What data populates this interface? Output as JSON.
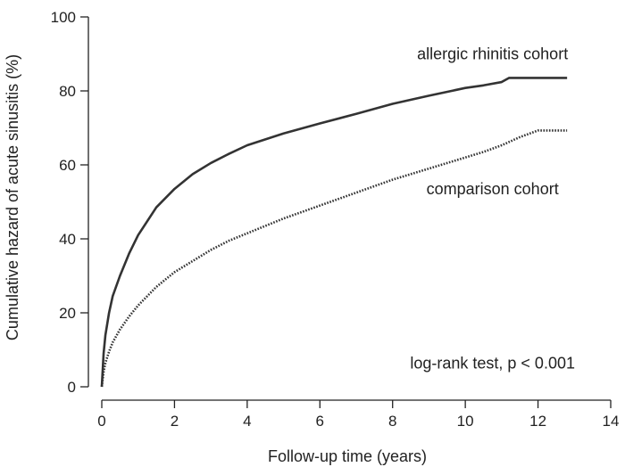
{
  "chart_data": {
    "type": "line",
    "title": "",
    "xlabel": "Follow-up time (years)",
    "ylabel": "Cumulative hazard of acute sinusitis (%)",
    "xlim": [
      0,
      14
    ],
    "ylim": [
      0,
      100
    ],
    "xticks": [
      0,
      2,
      4,
      6,
      8,
      10,
      12,
      14
    ],
    "yticks": [
      0,
      20,
      40,
      60,
      80,
      100
    ],
    "grid": false,
    "legend": "none",
    "series": [
      {
        "name": "allergic rhinitis cohort",
        "style": "solid",
        "color": "#333333",
        "x": [
          0,
          0.05,
          0.1,
          0.2,
          0.3,
          0.5,
          0.75,
          1,
          1.5,
          2,
          2.5,
          3,
          3.5,
          4,
          5,
          6,
          7,
          8,
          9,
          10,
          10.5,
          11,
          11.2,
          11.5,
          12,
          12.8
        ],
        "y": [
          0,
          9,
          14,
          20,
          24.5,
          30,
          36,
          41,
          48.5,
          53.5,
          57.5,
          60.5,
          63,
          65.3,
          68.5,
          71.2,
          73.8,
          76.5,
          78.7,
          80.8,
          81.5,
          82.4,
          83.5,
          83.5,
          83.5,
          83.5
        ]
      },
      {
        "name": "comparison cohort",
        "style": "dotted",
        "color": "#333333",
        "x": [
          0,
          0.05,
          0.1,
          0.2,
          0.3,
          0.5,
          0.75,
          1,
          1.5,
          2,
          2.5,
          3,
          3.5,
          4,
          5,
          6,
          7,
          8,
          9,
          10,
          10.5,
          11,
          11.5,
          12,
          12.8
        ],
        "y": [
          0,
          4,
          6.5,
          9.5,
          12,
          15.5,
          19,
          22,
          27,
          31,
          34,
          37,
          39.5,
          41.5,
          45.5,
          49,
          52.5,
          56,
          59,
          62,
          63.5,
          65.3,
          67.5,
          69.3,
          69.3
        ]
      }
    ],
    "annotations": [
      {
        "text": "allergic rhinitis cohort",
        "x": 10.75,
        "y": 88.5
      },
      {
        "text": "comparison cohort",
        "x": 10.75,
        "y": 52
      },
      {
        "text": "log-rank test, p < 0.001",
        "x": 10.75,
        "y": 5
      }
    ]
  }
}
